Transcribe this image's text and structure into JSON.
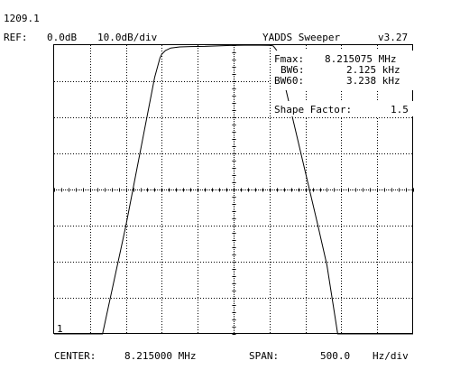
{
  "header": {
    "id_label": "1209.1",
    "ref_label": "REF:",
    "ref_level": "0.0dB",
    "scale": "10.0dB/div",
    "app_title": "YADDS Sweeper",
    "version": "v3.27"
  },
  "measurements": {
    "fmax_label": "Fmax:",
    "fmax_value": "8.215075 MHz",
    "bw6_label": "BW6:",
    "bw6_value": "2.125 kHz",
    "bw60_label": "BW60:",
    "bw60_value": "3.238 kHz",
    "shape_factor_label": "Shape Factor:",
    "shape_factor_value": "1.5"
  },
  "trace_marker": "1",
  "footer": {
    "center_label": "CENTER:",
    "center_value": "8.215000 MHz",
    "span_label": "SPAN:",
    "span_value": "500.0",
    "span_unit": "Hz/div"
  },
  "chart_data": {
    "type": "line",
    "x_divisions": 10,
    "y_divisions": 8,
    "reference_level_db": 0,
    "db_per_div": 10,
    "center_hz": 8215000,
    "hz_per_div": 500,
    "series": [
      {
        "x_div": [
          0,
          1.35,
          2.0,
          2.8,
          2.95,
          3.0,
          3.1,
          3.25,
          3.5,
          3.8,
          4.2,
          4.9,
          5.5,
          6.0,
          6.1,
          6.15,
          6.2,
          7.35,
          7.6,
          7.9,
          8.7,
          10
        ],
        "y_db": [
          -80,
          -80,
          -50,
          -9,
          -3.5,
          -2.5,
          -1.5,
          -0.8,
          -0.5,
          -0.4,
          -0.35,
          -0.1,
          0,
          -0.05,
          -0.2,
          -0.8,
          -1.5,
          -50,
          -61,
          -80,
          -80,
          -80
        ]
      }
    ]
  }
}
